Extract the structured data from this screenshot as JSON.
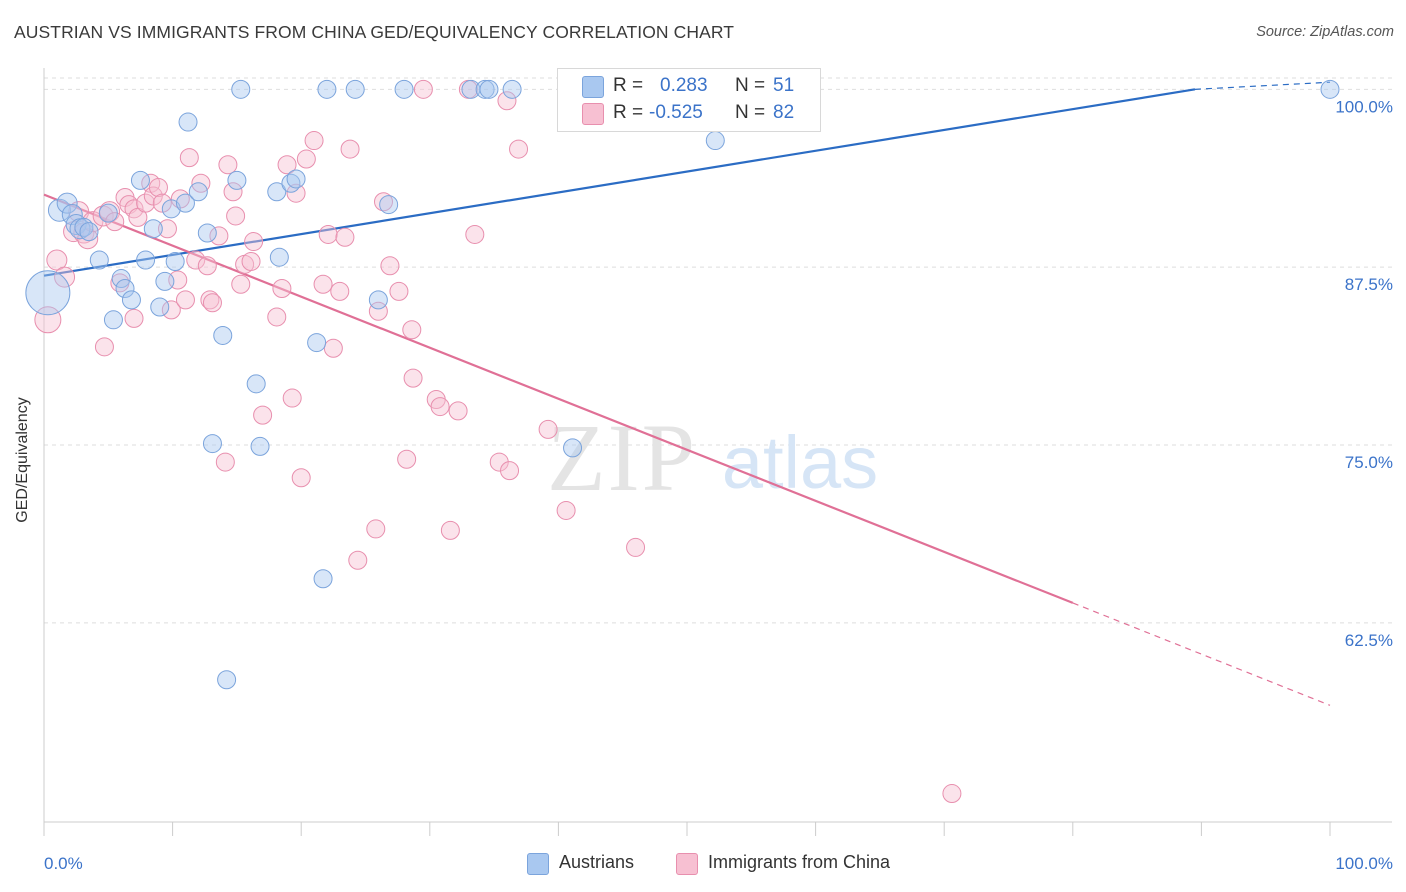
{
  "title": "AUSTRIAN VS IMMIGRANTS FROM CHINA GED/EQUIVALENCY CORRELATION CHART",
  "source": "Source: ZipAtlas.com",
  "watermark": {
    "zip": "ZIP",
    "atlas": "atlas"
  },
  "legend": {
    "rows": [
      {
        "r_label": "R =",
        "r_value": "0.283",
        "n_label": "N =",
        "n_value": "51",
        "color": "#a9c8f0",
        "stroke": "#7ba4dc"
      },
      {
        "r_label": "R =",
        "r_value": "-0.525",
        "n_label": "N =",
        "n_value": "82",
        "color": "#f7c0d2",
        "stroke": "#e88fae"
      }
    ]
  },
  "bottom_legend": [
    {
      "label": "Austrians",
      "color": "#a9c8f0",
      "stroke": "#7ba4dc"
    },
    {
      "label": "Immigrants from China",
      "color": "#f7c0d2",
      "stroke": "#e88fae"
    }
  ],
  "chart_data": {
    "type": "scatter",
    "title": "AUSTRIAN VS IMMIGRANTS FROM CHINA GED/EQUIVALENCY CORRELATION CHART",
    "xlabel": "",
    "ylabel": "GED/Equivalency",
    "xlim": [
      0,
      100
    ],
    "ylim": [
      48.5,
      101.5
    ],
    "x_tick_labels": [
      "0.0%",
      "100.0%"
    ],
    "y_ticks": [
      100.0,
      87.5,
      75.0,
      62.5
    ],
    "y_tick_labels": [
      "100.0%",
      "87.5%",
      "75.0%",
      "62.5%"
    ],
    "grid": "horizontal dashed",
    "legend_position": "top-center",
    "series": [
      {
        "name": "Austrians",
        "color": "#a9c8f0",
        "stroke": "#7ba4dc",
        "line_color": "#2b6cc4",
        "trend": {
          "x0": 0,
          "y0": 86.9,
          "x1": 89.5,
          "y1": 100.0,
          "dashed_x1": 100,
          "dashed_y1": 100.5
        },
        "points": [
          [
            0.3,
            85.7,
            22
          ],
          [
            1.2,
            91.5,
            11
          ],
          [
            1.8,
            92.0,
            10
          ],
          [
            2.2,
            91.2,
            10
          ],
          [
            2.5,
            90.5,
            10
          ],
          [
            2.8,
            90.2,
            10
          ],
          [
            3.1,
            90.3,
            9
          ],
          [
            3.5,
            90.0,
            9
          ],
          [
            4.3,
            88.0,
            9
          ],
          [
            5.0,
            91.3,
            9
          ],
          [
            6.0,
            86.7,
            9
          ],
          [
            6.3,
            86.0,
            9
          ],
          [
            6.8,
            85.2,
            9
          ],
          [
            5.4,
            83.8,
            9
          ],
          [
            7.5,
            93.6,
            9
          ],
          [
            7.9,
            88.0,
            9
          ],
          [
            8.5,
            90.2,
            9
          ],
          [
            9.0,
            84.7,
            9
          ],
          [
            9.4,
            86.5,
            9
          ],
          [
            9.9,
            91.6,
            9
          ],
          [
            10.2,
            87.9,
            9
          ],
          [
            11.0,
            92.0,
            9
          ],
          [
            11.2,
            97.7,
            9
          ],
          [
            12.0,
            92.8,
            9
          ],
          [
            12.7,
            89.9,
            9
          ],
          [
            13.9,
            82.7,
            9
          ],
          [
            14.2,
            58.5,
            9
          ],
          [
            13.1,
            75.1,
            9
          ],
          [
            15.0,
            93.6,
            9
          ],
          [
            15.3,
            100.0,
            9
          ],
          [
            16.5,
            79.3,
            9
          ],
          [
            16.8,
            74.9,
            9
          ],
          [
            18.1,
            92.8,
            9
          ],
          [
            18.3,
            88.2,
            9
          ],
          [
            19.2,
            93.4,
            9
          ],
          [
            19.6,
            93.7,
            9
          ],
          [
            21.2,
            82.2,
            9
          ],
          [
            21.7,
            65.6,
            9
          ],
          [
            22.0,
            100.0,
            9
          ],
          [
            24.2,
            100.0,
            9
          ],
          [
            26.0,
            85.2,
            9
          ],
          [
            26.8,
            91.9,
            9
          ],
          [
            28.0,
            100.0,
            9
          ],
          [
            33.2,
            100.0,
            9
          ],
          [
            34.3,
            100.0,
            9
          ],
          [
            34.6,
            100.0,
            9
          ],
          [
            36.4,
            100.0,
            9
          ],
          [
            41.1,
            74.8,
            9
          ],
          [
            47.0,
            100.0,
            9
          ],
          [
            52.2,
            96.4,
            9
          ],
          [
            100.0,
            100.0,
            9
          ]
        ]
      },
      {
        "name": "Immigrants from China",
        "color": "#f7c0d2",
        "stroke": "#e88fae",
        "line_color": "#e07096",
        "trend": {
          "x0": 0,
          "y0": 92.6,
          "x1": 80,
          "y1": 63.9,
          "dashed_x1": 100,
          "dashed_y1": 56.7
        },
        "points": [
          [
            0.3,
            83.8,
            13
          ],
          [
            1.0,
            88.0,
            10
          ],
          [
            1.6,
            86.8,
            10
          ],
          [
            2.3,
            90.0,
            10
          ],
          [
            2.7,
            91.4,
            10
          ],
          [
            3.1,
            89.9,
            10
          ],
          [
            3.4,
            89.5,
            10
          ],
          [
            3.8,
            90.7,
            10
          ],
          [
            4.6,
            91.1,
            10
          ],
          [
            5.1,
            91.4,
            10
          ],
          [
            5.5,
            90.7,
            9
          ],
          [
            4.7,
            81.9,
            9
          ],
          [
            5.9,
            86.4,
            9
          ],
          [
            6.3,
            92.4,
            9
          ],
          [
            6.6,
            91.9,
            9
          ],
          [
            7.0,
            91.6,
            9
          ],
          [
            7.3,
            91.0,
            9
          ],
          [
            7.0,
            83.9,
            9
          ],
          [
            7.9,
            92.0,
            9
          ],
          [
            8.3,
            93.4,
            9
          ],
          [
            8.5,
            92.5,
            9
          ],
          [
            8.9,
            93.1,
            9
          ],
          [
            9.2,
            92.0,
            9
          ],
          [
            9.6,
            90.2,
            9
          ],
          [
            9.9,
            84.5,
            9
          ],
          [
            10.4,
            86.6,
            9
          ],
          [
            10.6,
            92.3,
            9
          ],
          [
            11.0,
            85.2,
            9
          ],
          [
            11.3,
            95.2,
            9
          ],
          [
            11.8,
            88.0,
            9
          ],
          [
            12.2,
            93.4,
            9
          ],
          [
            12.7,
            87.6,
            9
          ],
          [
            12.9,
            85.2,
            9
          ],
          [
            13.1,
            85.0,
            9
          ],
          [
            13.6,
            89.7,
            9
          ],
          [
            14.1,
            73.8,
            9
          ],
          [
            14.3,
            94.7,
            9
          ],
          [
            14.7,
            92.8,
            9
          ],
          [
            14.9,
            91.1,
            9
          ],
          [
            15.3,
            86.3,
            9
          ],
          [
            15.6,
            87.7,
            9
          ],
          [
            16.1,
            87.9,
            9
          ],
          [
            16.3,
            89.3,
            9
          ],
          [
            17.0,
            77.1,
            9
          ],
          [
            18.1,
            84.0,
            9
          ],
          [
            18.5,
            86.0,
            9
          ],
          [
            18.9,
            94.7,
            9
          ],
          [
            19.3,
            78.3,
            9
          ],
          [
            19.6,
            92.7,
            9
          ],
          [
            20.0,
            72.7,
            9
          ],
          [
            20.4,
            95.1,
            9
          ],
          [
            21.0,
            96.4,
            9
          ],
          [
            21.7,
            86.3,
            9
          ],
          [
            22.1,
            89.8,
            9
          ],
          [
            22.5,
            81.8,
            9
          ],
          [
            23.0,
            85.8,
            9
          ],
          [
            23.4,
            89.6,
            9
          ],
          [
            23.8,
            95.8,
            9
          ],
          [
            24.4,
            66.9,
            9
          ],
          [
            25.8,
            69.1,
            9
          ],
          [
            26.0,
            84.4,
            9
          ],
          [
            26.4,
            92.1,
            9
          ],
          [
            26.9,
            87.6,
            9
          ],
          [
            27.6,
            85.8,
            9
          ],
          [
            28.2,
            74.0,
            9
          ],
          [
            28.6,
            83.1,
            9
          ],
          [
            28.7,
            79.7,
            9
          ],
          [
            29.5,
            100.0,
            9
          ],
          [
            30.5,
            78.2,
            9
          ],
          [
            30.8,
            77.7,
            9
          ],
          [
            31.6,
            69.0,
            9
          ],
          [
            32.2,
            77.4,
            9
          ],
          [
            33.0,
            100.0,
            9
          ],
          [
            33.5,
            89.8,
            9
          ],
          [
            35.4,
            73.8,
            9
          ],
          [
            36.0,
            99.2,
            9
          ],
          [
            36.2,
            73.2,
            9
          ],
          [
            36.9,
            95.8,
            9
          ],
          [
            39.2,
            76.1,
            9
          ],
          [
            40.6,
            70.4,
            9
          ],
          [
            46.0,
            67.8,
            9
          ],
          [
            70.6,
            50.5,
            9
          ]
        ]
      }
    ]
  }
}
